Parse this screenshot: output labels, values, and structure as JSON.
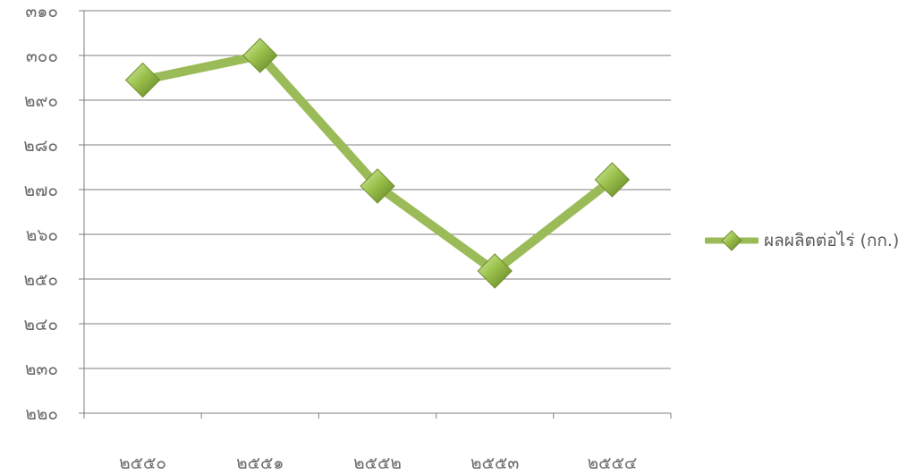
{
  "chart_data": {
    "type": "line",
    "categories": [
      "๒๕๕๐",
      "๒๕๕๑",
      "๒๕๕๒",
      "๒๕๕๓",
      "๒๕๕๔"
    ],
    "series": [
      {
        "name": "ผลผลิตต่อไร่ (กก.)",
        "values": [
          294.5,
          300,
          270.8,
          251.8,
          272.2
        ]
      }
    ],
    "ylim": [
      220,
      310
    ],
    "yticks": [
      220,
      230,
      240,
      250,
      260,
      270,
      280,
      290,
      300,
      310
    ],
    "ytick_labels": [
      "๒๒๐",
      "๒๓๐",
      "๒๔๐",
      "๒๕๐",
      "๒๖๐",
      "๒๗๐",
      "๒๘๐",
      "๒๙๐",
      "๓๐๐",
      "๓๑๐"
    ],
    "grid": true,
    "legend_position": "right",
    "colors": {
      "line": "#9bbb59",
      "marker": "#8db33a",
      "grid": "#7f7f7f",
      "axis": "#7f7f7f",
      "text": "#6b6b6b"
    }
  }
}
